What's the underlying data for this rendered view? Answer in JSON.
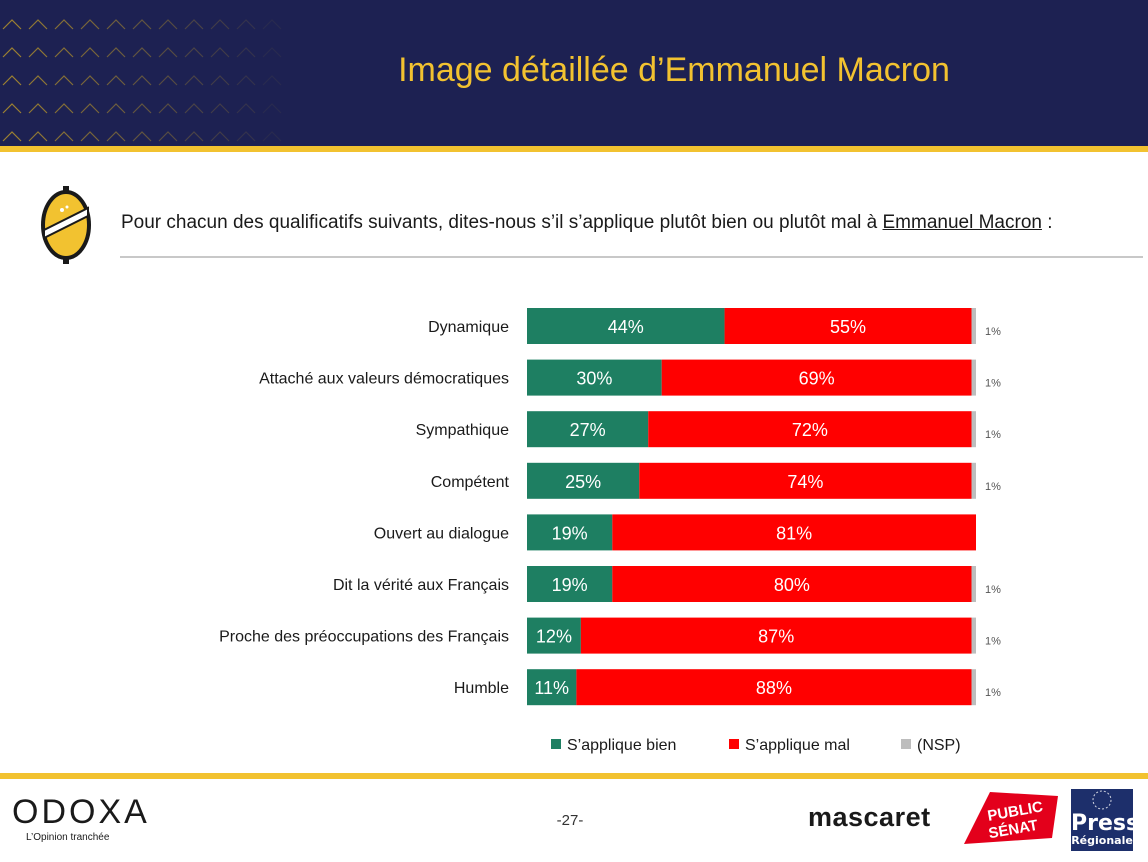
{
  "header": {
    "title": "Image détaillée d’Emmanuel Macron"
  },
  "question": {
    "text": "Pour chacun des qualificatifs suivants, dites-nous s’il s’applique plutôt bien ou plutôt mal à ",
    "subject": "Emmanuel Macron",
    "suffix": " :"
  },
  "colors": {
    "navy": "#1d2152",
    "gold": "#f2c230",
    "bien": "#1e7f62",
    "mal": "#ff0000",
    "nsp": "#bdbdbd"
  },
  "chart_data": {
    "type": "bar",
    "orientation": "horizontal",
    "stacked": true,
    "categories": [
      "Dynamique",
      "Attaché aux valeurs démocratiques",
      "Sympathique",
      "Compétent",
      "Ouvert au dialogue",
      "Dit la vérité aux Français",
      "Proche des préoccupations des Français",
      "Humble"
    ],
    "series": [
      {
        "name": "S’applique bien",
        "values": [
          44,
          30,
          27,
          25,
          19,
          19,
          12,
          11
        ],
        "labels": [
          "44%",
          "30%",
          "27%",
          "25%",
          "19%",
          "19%",
          "12%",
          "11%"
        ]
      },
      {
        "name": "S’applique mal",
        "values": [
          55,
          69,
          72,
          74,
          81,
          80,
          87,
          88
        ],
        "labels": [
          "55%",
          "69%",
          "72%",
          "74%",
          "81%",
          "80%",
          "87%",
          "88%"
        ]
      },
      {
        "name": "(NSP)",
        "values": [
          1,
          1,
          1,
          1,
          0,
          1,
          1,
          1
        ],
        "labels": [
          "1%",
          "1%",
          "1%",
          "1%",
          "",
          "1%",
          "1%",
          "1%"
        ]
      }
    ],
    "xlim": [
      0,
      100
    ],
    "legend": "bottom"
  },
  "footer": {
    "brand": "ODOXA",
    "tagline": "L’Opinion tranchée",
    "page": "-27-",
    "partner1": "mascaret",
    "partner2_line1": "PUBLIC",
    "partner2_line2": "SÉNAT",
    "partner3_line1": "Presse",
    "partner3_line2": "Régionale"
  }
}
